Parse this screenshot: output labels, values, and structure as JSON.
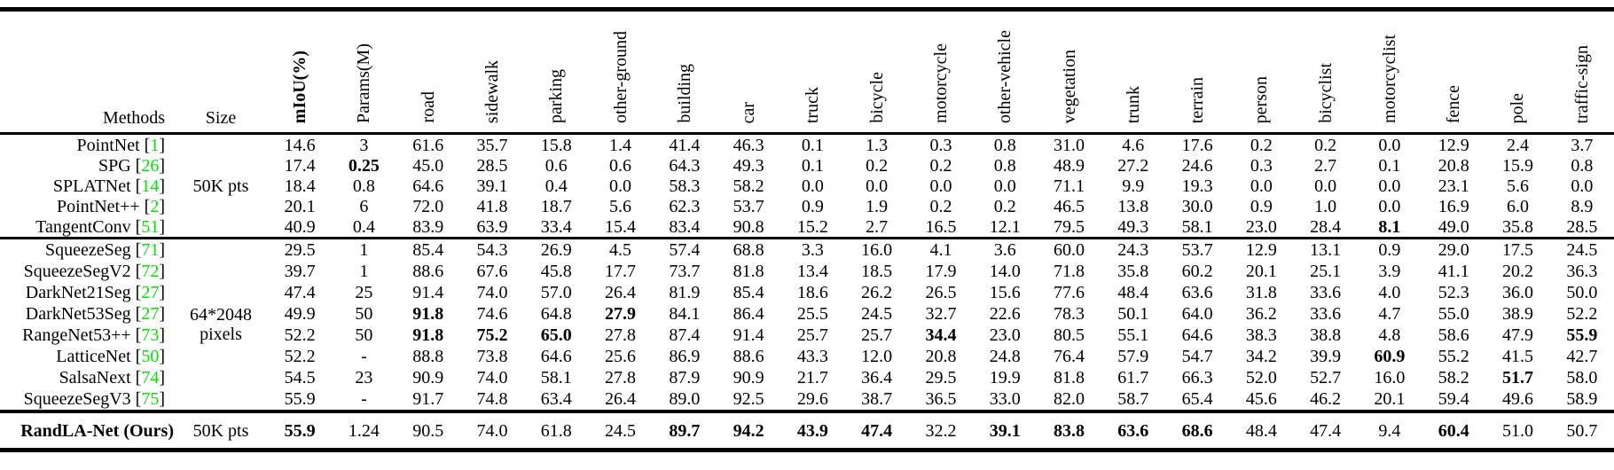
{
  "meta": {
    "background_color": "#ffffff",
    "text_color": "#000000",
    "citation_color": "#00e400"
  },
  "table": {
    "columns": [
      {
        "label": "Methods",
        "rotated": false,
        "bold": false
      },
      {
        "label": "Size",
        "rotated": false,
        "bold": false
      },
      {
        "label": "mIoU(%)",
        "rotated": true,
        "bold": true
      },
      {
        "label": "Params(M)",
        "rotated": true,
        "bold": false
      },
      {
        "label": "road",
        "rotated": true,
        "bold": false
      },
      {
        "label": "sidewalk",
        "rotated": true,
        "bold": false
      },
      {
        "label": "parking",
        "rotated": true,
        "bold": false
      },
      {
        "label": "other-ground",
        "rotated": true,
        "bold": false
      },
      {
        "label": "building",
        "rotated": true,
        "bold": false
      },
      {
        "label": "car",
        "rotated": true,
        "bold": false
      },
      {
        "label": "truck",
        "rotated": true,
        "bold": false
      },
      {
        "label": "bicycle",
        "rotated": true,
        "bold": false
      },
      {
        "label": "motorcycle",
        "rotated": true,
        "bold": false
      },
      {
        "label": "other-vehicle",
        "rotated": true,
        "bold": false
      },
      {
        "label": "vegetation",
        "rotated": true,
        "bold": false
      },
      {
        "label": "trunk",
        "rotated": true,
        "bold": false
      },
      {
        "label": "terrain",
        "rotated": true,
        "bold": false
      },
      {
        "label": "person",
        "rotated": true,
        "bold": false
      },
      {
        "label": "bicyclist",
        "rotated": true,
        "bold": false
      },
      {
        "label": "motorcyclist",
        "rotated": true,
        "bold": false
      },
      {
        "label": "fence",
        "rotated": true,
        "bold": false
      },
      {
        "label": "pole",
        "rotated": true,
        "bold": false
      },
      {
        "label": "traffic-sign",
        "rotated": true,
        "bold": false
      }
    ],
    "groups": [
      {
        "size": "50K pts",
        "rows": [
          {
            "method": "PointNet",
            "cite": "1",
            "bold_method": false,
            "bold_indices": [],
            "values": [
              "14.6",
              "3",
              "61.6",
              "35.7",
              "15.8",
              "1.4",
              "41.4",
              "46.3",
              "0.1",
              "1.3",
              "0.3",
              "0.8",
              "31.0",
              "4.6",
              "17.6",
              "0.2",
              "0.2",
              "0.0",
              "12.9",
              "2.4",
              "3.7"
            ]
          },
          {
            "method": "SPG",
            "cite": "26",
            "bold_method": false,
            "bold_indices": [
              1
            ],
            "values": [
              "17.4",
              "0.25",
              "45.0",
              "28.5",
              "0.6",
              "0.6",
              "64.3",
              "49.3",
              "0.1",
              "0.2",
              "0.2",
              "0.8",
              "48.9",
              "27.2",
              "24.6",
              "0.3",
              "2.7",
              "0.1",
              "20.8",
              "15.9",
              "0.8"
            ]
          },
          {
            "method": "SPLATNet",
            "cite": "14",
            "bold_method": false,
            "bold_indices": [],
            "values": [
              "18.4",
              "0.8",
              "64.6",
              "39.1",
              "0.4",
              "0.0",
              "58.3",
              "58.2",
              "0.0",
              "0.0",
              "0.0",
              "0.0",
              "71.1",
              "9.9",
              "19.3",
              "0.0",
              "0.0",
              "0.0",
              "23.1",
              "5.6",
              "0.0"
            ]
          },
          {
            "method": "PointNet++",
            "cite": "2",
            "bold_method": false,
            "bold_indices": [],
            "values": [
              "20.1",
              "6",
              "72.0",
              "41.8",
              "18.7",
              "5.6",
              "62.3",
              "53.7",
              "0.9",
              "1.9",
              "0.2",
              "0.2",
              "46.5",
              "13.8",
              "30.0",
              "0.9",
              "1.0",
              "0.0",
              "16.9",
              "6.0",
              "8.9"
            ]
          },
          {
            "method": "TangentConv",
            "cite": "51",
            "bold_method": false,
            "bold_indices": [
              17
            ],
            "values": [
              "40.9",
              "0.4",
              "83.9",
              "63.9",
              "33.4",
              "15.4",
              "83.4",
              "90.8",
              "15.2",
              "2.7",
              "16.5",
              "12.1",
              "79.5",
              "49.3",
              "58.1",
              "23.0",
              "28.4",
              "8.1",
              "49.0",
              "35.8",
              "28.5"
            ]
          }
        ]
      },
      {
        "size": "64*2048 pixels",
        "rows": [
          {
            "method": "SqueezeSeg",
            "cite": "71",
            "bold_method": false,
            "bold_indices": [],
            "values": [
              "29.5",
              "1",
              "85.4",
              "54.3",
              "26.9",
              "4.5",
              "57.4",
              "68.8",
              "3.3",
              "16.0",
              "4.1",
              "3.6",
              "60.0",
              "24.3",
              "53.7",
              "12.9",
              "13.1",
              "0.9",
              "29.0",
              "17.5",
              "24.5"
            ]
          },
          {
            "method": "SqueezeSegV2",
            "cite": "72",
            "bold_method": false,
            "bold_indices": [],
            "values": [
              "39.7",
              "1",
              "88.6",
              "67.6",
              "45.8",
              "17.7",
              "73.7",
              "81.8",
              "13.4",
              "18.5",
              "17.9",
              "14.0",
              "71.8",
              "35.8",
              "60.2",
              "20.1",
              "25.1",
              "3.9",
              "41.1",
              "20.2",
              "36.3"
            ]
          },
          {
            "method": "DarkNet21Seg",
            "cite": "27",
            "bold_method": false,
            "bold_indices": [],
            "values": [
              "47.4",
              "25",
              "91.4",
              "74.0",
              "57.0",
              "26.4",
              "81.9",
              "85.4",
              "18.6",
              "26.2",
              "26.5",
              "15.6",
              "77.6",
              "48.4",
              "63.6",
              "31.8",
              "33.6",
              "4.0",
              "52.3",
              "36.0",
              "50.0"
            ]
          },
          {
            "method": "DarkNet53Seg",
            "cite": "27",
            "bold_method": false,
            "bold_indices": [
              2,
              5
            ],
            "values": [
              "49.9",
              "50",
              "91.8",
              "74.6",
              "64.8",
              "27.9",
              "84.1",
              "86.4",
              "25.5",
              "24.5",
              "32.7",
              "22.6",
              "78.3",
              "50.1",
              "64.0",
              "36.2",
              "33.6",
              "4.7",
              "55.0",
              "38.9",
              "52.2"
            ]
          },
          {
            "method": "RangeNet53++",
            "cite": "73",
            "bold_method": false,
            "bold_indices": [
              2,
              3,
              4,
              10,
              20
            ],
            "values": [
              "52.2",
              "50",
              "91.8",
              "75.2",
              "65.0",
              "27.8",
              "87.4",
              "91.4",
              "25.7",
              "25.7",
              "34.4",
              "23.0",
              "80.5",
              "55.1",
              "64.6",
              "38.3",
              "38.8",
              "4.8",
              "58.6",
              "47.9",
              "55.9"
            ]
          },
          {
            "method": "LatticeNet",
            "cite": "50",
            "bold_method": false,
            "bold_indices": [
              17
            ],
            "values": [
              "52.2",
              "-",
              "88.8",
              "73.8",
              "64.6",
              "25.6",
              "86.9",
              "88.6",
              "43.3",
              "12.0",
              "20.8",
              "24.8",
              "76.4",
              "57.9",
              "54.7",
              "34.2",
              "39.9",
              "60.9",
              "55.2",
              "41.5",
              "42.7"
            ]
          },
          {
            "method": "SalsaNext",
            "cite": "74",
            "bold_method": false,
            "bold_indices": [
              19
            ],
            "values": [
              "54.5",
              "23",
              "90.9",
              "74.0",
              "58.1",
              "27.8",
              "87.9",
              "90.9",
              "21.7",
              "36.4",
              "29.5",
              "19.9",
              "81.8",
              "61.7",
              "66.3",
              "52.0",
              "52.7",
              "16.0",
              "58.2",
              "51.7",
              "58.0"
            ]
          },
          {
            "method": "SqueezeSegV3",
            "cite": "75",
            "bold_method": false,
            "bold_indices": [],
            "values": [
              "55.9",
              "-",
              "91.7",
              "74.8",
              "63.4",
              "26.4",
              "89.0",
              "92.5",
              "29.6",
              "38.7",
              "36.5",
              "33.0",
              "82.0",
              "58.7",
              "65.4",
              "45.6",
              "46.2",
              "20.1",
              "59.4",
              "49.6",
              "58.9"
            ]
          }
        ]
      },
      {
        "size": "50K pts",
        "rows": [
          {
            "method": "RandLA-Net (Ours)",
            "cite": null,
            "bold_method": true,
            "bold_indices": [
              0,
              6,
              7,
              8,
              9,
              11,
              12,
              13,
              14,
              18
            ],
            "values": [
              "55.9",
              "1.24",
              "90.5",
              "74.0",
              "61.8",
              "24.5",
              "89.7",
              "94.2",
              "43.9",
              "47.4",
              "32.2",
              "39.1",
              "83.8",
              "63.6",
              "68.6",
              "48.4",
              "47.4",
              "9.4",
              "60.4",
              "51.0",
              "50.7"
            ]
          }
        ]
      }
    ]
  }
}
